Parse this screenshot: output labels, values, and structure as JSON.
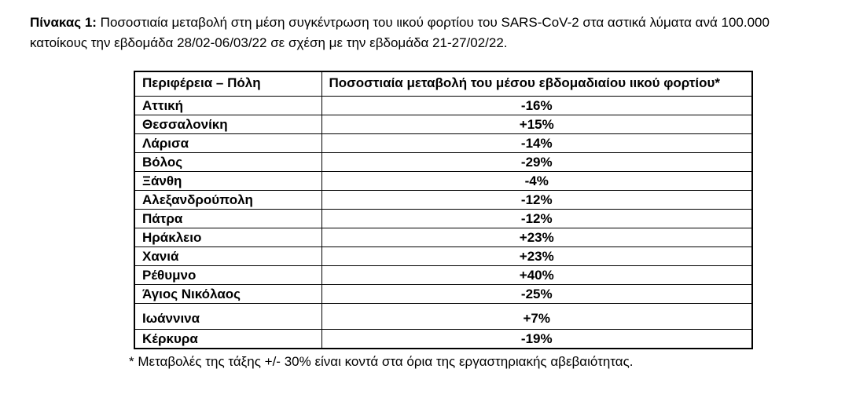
{
  "document": {
    "title_label": "Πίνακας 1:",
    "title_rest": " Ποσοστιαία μεταβολή στη μέση συγκέντρωση του ιικού φορτίου του SARS-CoV-2 στα αστικά λύματα ανά 100.000 κατοίκους την εβδομάδα 28/02-06/03/22 σε σχέση με την εβδομάδα 21-27/02/22.",
    "footnote": "* Μεταβολές της τάξης +/- 30% είναι κοντά στα όρια της εργαστηριακής αβεβαιότητας."
  },
  "table": {
    "headers": {
      "region": "Περιφέρεια – Πόλη",
      "change": "Ποσοστιαία μεταβολή του μέσου εβδομαδιαίου ιικού φορτίου*"
    },
    "rows": [
      {
        "city": "Αττική",
        "change": "-16%"
      },
      {
        "city": "Θεσσαλονίκη",
        "change": "+15%"
      },
      {
        "city": "Λάρισα",
        "change": "-14%"
      },
      {
        "city": "Βόλος",
        "change": "-29%"
      },
      {
        "city": "Ξάνθη",
        "change": "-4%"
      },
      {
        "city": "Αλεξανδρούπολη",
        "change": "-12%"
      },
      {
        "city": "Πάτρα",
        "change": "-12%"
      },
      {
        "city": "Ηράκλειο",
        "change": "+23%"
      },
      {
        "city": "Χανιά",
        "change": "+23%"
      },
      {
        "city": "Ρέθυμνο",
        "change": "+40%"
      },
      {
        "city": "Άγιος Νικόλαος",
        "change": "-25%"
      },
      {
        "city": "Ιωάννινα",
        "change": "+7%"
      },
      {
        "city": "Κέρκυρα",
        "change": "-19%"
      }
    ]
  }
}
